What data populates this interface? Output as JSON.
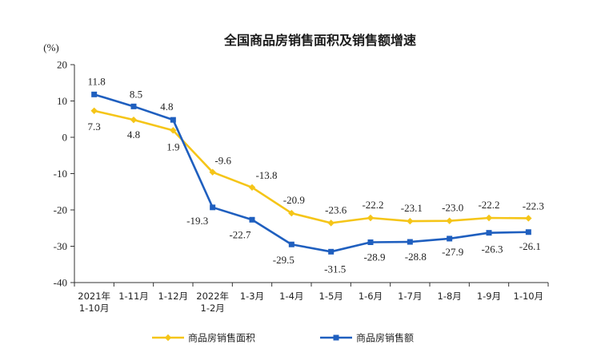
{
  "chart_data": {
    "type": "line",
    "title": "全国商品房销售面积及销售额增速",
    "unit": "(%)",
    "ylim": [
      -40,
      20
    ],
    "yticks": [
      20,
      10,
      0,
      -10,
      -20,
      -30,
      -40
    ],
    "categories": [
      [
        "2021年",
        "1-10月"
      ],
      [
        "1-11月"
      ],
      [
        "1-12月"
      ],
      [
        "2022年",
        "1-2月"
      ],
      [
        "1-3月"
      ],
      [
        "1-4月"
      ],
      [
        "1-5月"
      ],
      [
        "1-6月"
      ],
      [
        "1-7月"
      ],
      [
        "1-8月"
      ],
      [
        "1-9月"
      ],
      [
        "1-10月"
      ]
    ],
    "series": [
      {
        "name": "商品房销售面积",
        "color": "#f5c518",
        "marker": "diamond",
        "values": [
          7.3,
          4.8,
          1.9,
          -9.6,
          -13.8,
          -20.9,
          -23.6,
          -22.2,
          -23.1,
          -23.0,
          -22.2,
          -22.3
        ],
        "labels": [
          "7.3",
          "4.8",
          "1.9",
          "-9.6",
          "-13.8",
          "-20.9",
          "-23.6",
          "-22.2",
          "-23.1",
          "-23.0",
          "-22.2",
          "-22.3"
        ]
      },
      {
        "name": "商品房销售额",
        "color": "#1f5fbf",
        "marker": "square",
        "values": [
          11.8,
          8.5,
          4.8,
          -19.3,
          -22.7,
          -29.5,
          -31.5,
          -28.9,
          -28.8,
          -27.9,
          -26.3,
          -26.1
        ],
        "labels": [
          "11.8",
          "8.5",
          "4.8",
          "-19.3",
          "-22.7",
          "-29.5",
          "-31.5",
          "-28.9",
          "-28.8",
          "-27.9",
          "-26.3",
          "-26.1"
        ]
      }
    ]
  }
}
